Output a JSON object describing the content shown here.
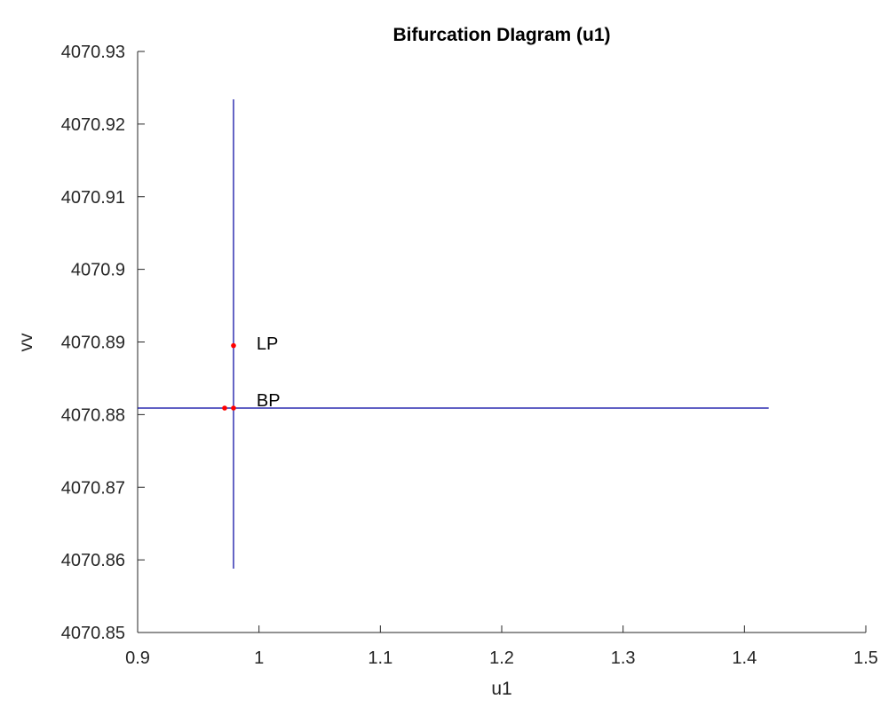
{
  "chart_data": {
    "type": "line",
    "title": "Bifurcation DIagram (u1)",
    "xlabel": "u1",
    "ylabel": "vv",
    "xlim": [
      0.9,
      1.5
    ],
    "ylim": [
      4070.85,
      4070.93
    ],
    "xticks": [
      "0.9",
      "1",
      "1.1",
      "1.2",
      "1.3",
      "1.4",
      "1.5"
    ],
    "xtick_values": [
      0.9,
      1.0,
      1.1,
      1.2,
      1.3,
      1.4,
      1.5
    ],
    "yticks": [
      "4070.85",
      "4070.86",
      "4070.87",
      "4070.88",
      "4070.89",
      "4070.9",
      "4070.91",
      "4070.92",
      "4070.93"
    ],
    "ytick_values": [
      4070.85,
      4070.86,
      4070.87,
      4070.88,
      4070.89,
      4070.9,
      4070.91,
      4070.92,
      4070.93
    ],
    "grid": false,
    "series": [
      {
        "x": [
          0.979,
          0.979
        ],
        "y": [
          4070.8588,
          4070.9234
        ],
        "color": "#0000a0"
      },
      {
        "x": [
          0.9,
          1.42
        ],
        "y": [
          4070.8809,
          4070.8809
        ],
        "color": "#0000a0"
      }
    ],
    "points": [
      {
        "x": 0.979,
        "y": 4070.8895,
        "color": "#ff0000"
      },
      {
        "x": 0.9717,
        "y": 4070.8809,
        "color": "#ff0000"
      },
      {
        "x": 0.979,
        "y": 4070.8809,
        "color": "#ff0000"
      }
    ],
    "annotations": [
      {
        "text": "LP",
        "x": 0.998,
        "y": 4070.8898
      },
      {
        "text": "BP",
        "x": 0.998,
        "y": 4070.882
      }
    ]
  }
}
